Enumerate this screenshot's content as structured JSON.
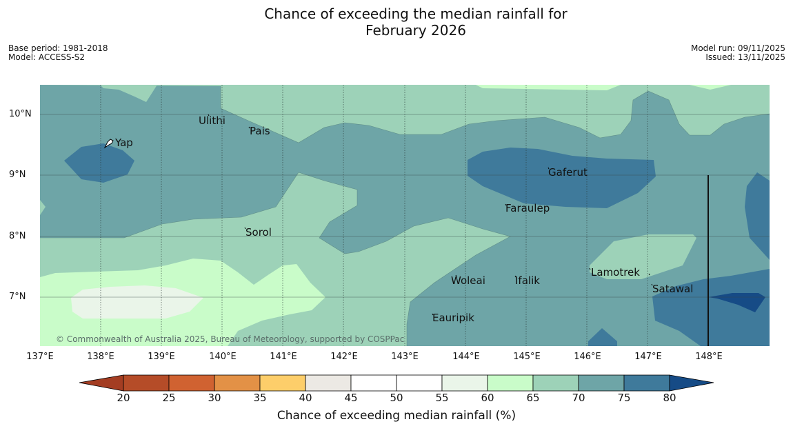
{
  "header": {
    "title_line1": "Chance of exceeding the median rainfall for",
    "title_line2": "February 2026",
    "base_period": "Base period: 1981-2018",
    "model": "Model: ACCESS-S2",
    "model_run": "Model run: 09/11/2025",
    "issued": "Issued: 13/11/2025"
  },
  "map": {
    "latitude_labels": [
      "10°N",
      "9°N",
      "8°N",
      "7°N"
    ],
    "longitude_labels": [
      "137°E",
      "138°E",
      "139°E",
      "140°E",
      "141°E",
      "142°E",
      "143°E",
      "144°E",
      "145°E",
      "146°E",
      "147°E",
      "148°E"
    ],
    "places": [
      "Yap",
      "Ulithi",
      "Pais",
      "Gaferut",
      "Faraulep",
      "Sorol",
      "Woleai",
      "Ifalik",
      "Lamotrek",
      "Satawal",
      "Eauripik"
    ],
    "copyright": "© Commonwealth of Australia 2025, Bureau of Meteorology, supported by COSPPac"
  },
  "colorbar": {
    "title": "Chance of exceeding median rainfall (%)",
    "ticks": [
      "20",
      "25",
      "30",
      "35",
      "40",
      "45",
      "50",
      "55",
      "60",
      "65",
      "70",
      "75",
      "80"
    ],
    "colors": {
      "under": "#a43d22",
      "20-25": "#b54c28",
      "25-30": "#d06231",
      "30-35": "#e39146",
      "35-40": "#fdce6a",
      "40-45": "#ece9e4",
      "45-50": "#ffffff",
      "50-55": "#ffffff",
      "55-60": "#eaf5e9",
      "60-65": "#c9fcc9",
      "65-70": "#9dd2b8",
      "70-75": "#6ea5a7",
      "75-80": "#3f7a9b",
      "over": "#164b86"
    }
  }
}
